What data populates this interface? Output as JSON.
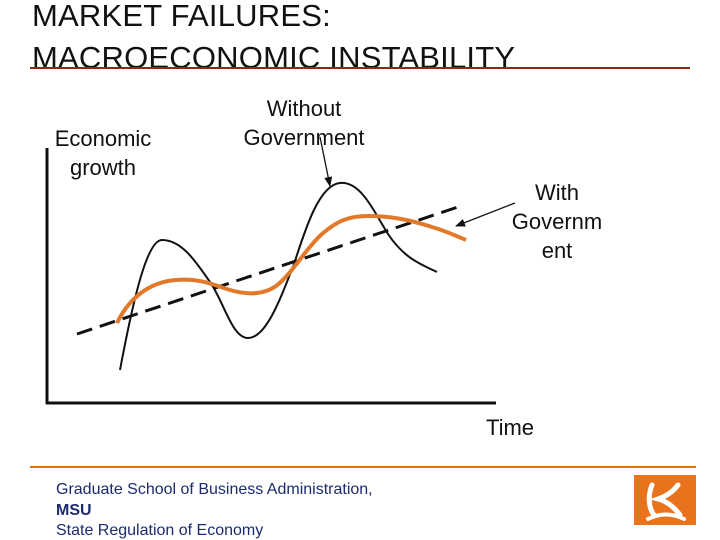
{
  "slide": {
    "title_line_1": "MARKET FAILURES:",
    "title_line_2": "MACROECONOMIC INSTABILITY"
  },
  "diagram": {
    "y_axis_label": "Economic growth",
    "x_axis_label": "Time",
    "without_government_label": "Without Government",
    "with_government_label": "With Governm ent",
    "curve_colors": {
      "without_government": "#111111",
      "with_government": "#e07a2a",
      "trend": "#111111"
    }
  },
  "footer": {
    "line_1": "Graduate School of Business Administration,",
    "line_2": "MSU",
    "line_3": "State Regulation of Economy",
    "accent_color": "#e07010"
  },
  "logo": {
    "color": "#e9731c"
  }
}
